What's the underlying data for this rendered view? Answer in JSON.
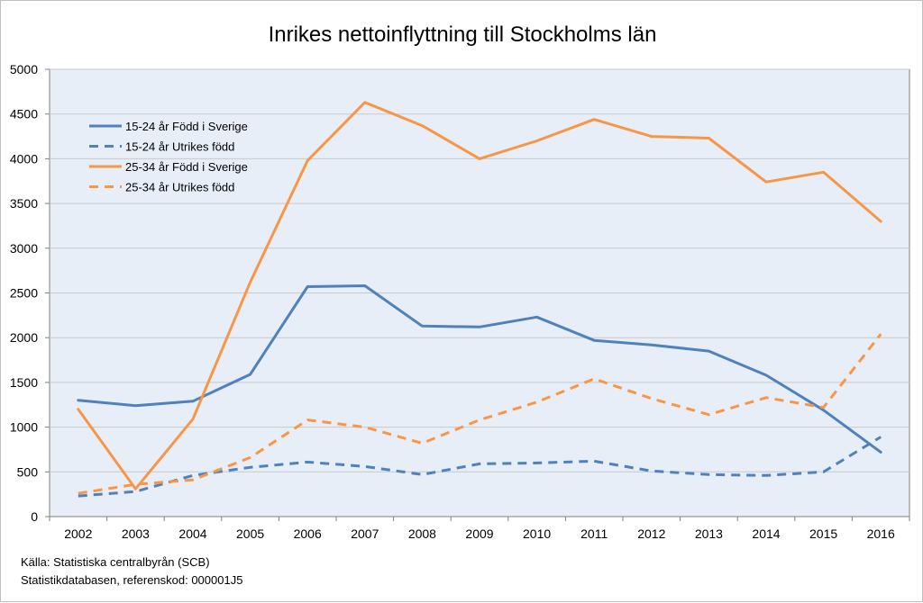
{
  "chart_data": {
    "type": "line",
    "title": "Inrikes nettoinflyttning till Stockholms län",
    "xlabel": "",
    "ylabel": "",
    "ylim": [
      0,
      5000
    ],
    "y_ticks": [
      "0",
      "500",
      "1000",
      "1500",
      "2000",
      "2500",
      "3000",
      "3500",
      "4000",
      "4500",
      "5000"
    ],
    "categories": [
      "2002",
      "2003",
      "2004",
      "2005",
      "2006",
      "2007",
      "2008",
      "2009",
      "2010",
      "2011",
      "2012",
      "2013",
      "2014",
      "2015",
      "2016"
    ],
    "grid": true,
    "legend_position": "top-left",
    "series": [
      {
        "name": "15-24 år Född i Sverige",
        "color": "#4f81bd",
        "dash": "solid",
        "values": [
          1300,
          1240,
          1290,
          1590,
          2570,
          2580,
          2130,
          2120,
          2230,
          1970,
          1920,
          1850,
          1580,
          1190,
          720
        ]
      },
      {
        "name": "15-24 år Utrikes född",
        "color": "#4f81bd",
        "dash": "dashed",
        "values": [
          230,
          280,
          460,
          550,
          610,
          560,
          470,
          590,
          600,
          620,
          510,
          470,
          460,
          500,
          890
        ]
      },
      {
        "name": "25-34 år Född i Sverige",
        "color": "#f79646",
        "dash": "solid",
        "values": [
          1200,
          310,
          1090,
          2620,
          3980,
          4630,
          4370,
          4000,
          4200,
          4440,
          4250,
          4230,
          3740,
          3850,
          3300
        ]
      },
      {
        "name": "25-34 år Utrikes född",
        "color": "#f79646",
        "dash": "dashed",
        "values": [
          260,
          360,
          410,
          660,
          1080,
          1000,
          820,
          1080,
          1280,
          1540,
          1320,
          1140,
          1330,
          1220,
          2040
        ]
      }
    ]
  },
  "colors": {
    "plot_background": "#e7eef8",
    "gridline": "#c9c9c9",
    "axis": "#808080"
  },
  "source": {
    "line1": "Källa: Statistiska centralbyrån (SCB)",
    "line2": "Statistikdatabasen, referenskod: 000001J5"
  }
}
